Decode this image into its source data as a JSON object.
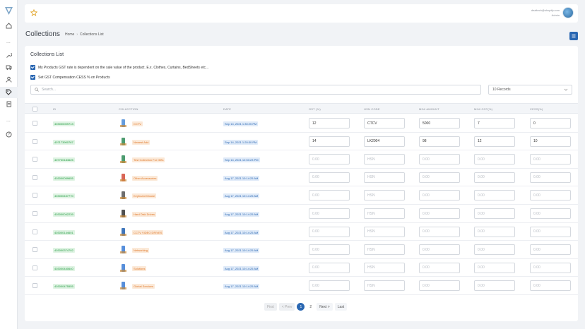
{
  "user": {
    "email": "dealtech@shopify.com",
    "role": "Admin"
  },
  "page": {
    "title": "Collections"
  },
  "breadcrumb": {
    "home": "Home",
    "current": "Collections List"
  },
  "card": {
    "title": "Collections List"
  },
  "options": {
    "gst_dependent": "My Products GST rate is dependent on the sale value of the product. E.x. Clothes, Curtains, BedSheets etc...",
    "cess": "Set GST Compensation CESS % on Products"
  },
  "search": {
    "placeholder": "Search..."
  },
  "records": {
    "selected": "10 Records"
  },
  "columns": {
    "id": "ID",
    "collection": "COLLECTION",
    "date": "DATE",
    "gst": "GST (%)",
    "hsn": "HSN CODE",
    "min_amount": "MINI AMOUNT",
    "min_gst": "MINI GST(%)",
    "cess": "CESS(%)"
  },
  "placeholders": {
    "num": "0.00",
    "hsn": "HSN"
  },
  "rows": [
    {
      "id": "403000009713",
      "collection": "CCTV",
      "date": "Sep 14, 2021 1:30:25 PM",
      "gst": "12",
      "hsn": "CTCV",
      "min_amount": "5000",
      "min_gst": "7",
      "cess": "0"
    },
    {
      "id": "407173900767",
      "collection": "Newest Add",
      "date": "Sep 14, 2021 1:20:30 PM",
      "gst": "14",
      "hsn": "LK2004",
      "min_amount": "98",
      "min_gst": "12",
      "cess": "10"
    },
    {
      "id": "407730184625",
      "collection": "Test Collection For Gifts",
      "date": "Sep 14, 2021 12:53:23 PM",
      "gst": "",
      "hsn": "",
      "min_amount": "",
      "min_gst": "",
      "cess": ""
    },
    {
      "id": "403000059655",
      "collection": "Other Accessories",
      "date": "Aug 17, 2021 10:14:25 AM",
      "gst": "",
      "hsn": "",
      "min_amount": "",
      "min_gst": "",
      "cess": ""
    },
    {
      "id": "403000437770",
      "collection": "Keyboard Mouse",
      "date": "Aug 17, 2021 10:14:25 AM",
      "gst": "",
      "hsn": "",
      "min_amount": "",
      "min_gst": "",
      "cess": ""
    },
    {
      "id": "403000042239",
      "collection": "Hard Disk Drives",
      "date": "Aug 17, 2021 10:14:25 AM",
      "gst": "",
      "hsn": "",
      "min_amount": "",
      "min_gst": "",
      "cess": ""
    },
    {
      "id": "403000144601",
      "collection": "CCTV VIDEO DRIVES",
      "date": "Aug 17, 2021 10:14:25 AM",
      "gst": "",
      "hsn": "",
      "min_amount": "",
      "min_gst": "",
      "cess": ""
    },
    {
      "id": "403000374702",
      "collection": "Networking",
      "date": "Aug 17, 2021 10:14:25 AM",
      "gst": "",
      "hsn": "",
      "min_amount": "",
      "min_gst": "",
      "cess": ""
    },
    {
      "id": "403000440640",
      "collection": "Solutions",
      "date": "Aug 17, 2021 10:14:25 AM",
      "gst": "",
      "hsn": "",
      "min_amount": "",
      "min_gst": "",
      "cess": ""
    },
    {
      "id": "403000475555",
      "collection": "Global Services",
      "date": "Aug 17, 2021 10:14:25 AM",
      "gst": "",
      "hsn": "",
      "min_amount": "",
      "min_gst": "",
      "cess": ""
    }
  ],
  "pagination": {
    "first": "First",
    "prev": "< Prev",
    "pages": [
      "1",
      "2"
    ],
    "current": "1",
    "next": "Next >",
    "last": "Last"
  },
  "colors": {
    "primary": "#2a67b2",
    "id_badge": "#1f9a3e",
    "collection_badge": "#e0782a",
    "date_badge": "#2a67b2"
  }
}
